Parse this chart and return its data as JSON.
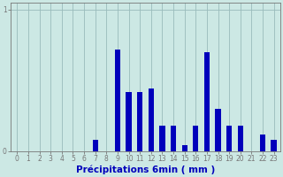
{
  "categories": [
    0,
    1,
    2,
    3,
    4,
    5,
    6,
    7,
    8,
    9,
    10,
    11,
    12,
    13,
    14,
    15,
    16,
    17,
    18,
    19,
    20,
    21,
    22,
    23
  ],
  "bar_heights": [
    0,
    0,
    0,
    0,
    0,
    0,
    0,
    0.08,
    0,
    0.72,
    0.42,
    0.42,
    0.44,
    0.18,
    0.18,
    0.04,
    0.18,
    0.7,
    0.3,
    0.18,
    0.18,
    0,
    0.12,
    0.08
  ],
  "xlabel": "Précipitations 6min ( mm )",
  "ylim": [
    0,
    1.05
  ],
  "yticks": [
    0,
    1
  ],
  "background_color": "#cce8e4",
  "bar_color": "#0000bb",
  "grid_color": "#99bbbb",
  "axis_color": "#777777",
  "text_color": "#0000bb",
  "tick_fontsize": 5.5,
  "xlabel_fontsize": 7.5
}
